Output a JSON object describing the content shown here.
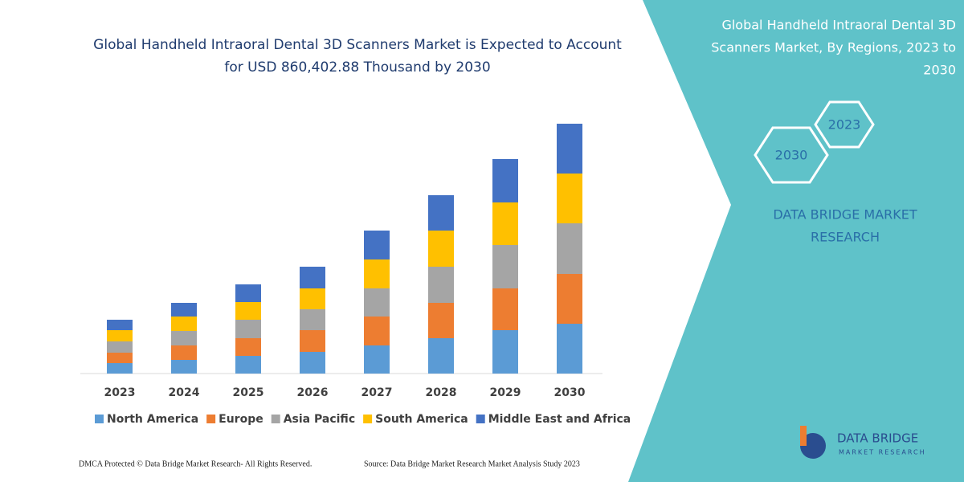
{
  "chart_data": {
    "type": "bar",
    "stacked": true,
    "title": [
      "Global Handheld Intraoral Dental 3D Scanners Market is Expected to Account",
      "for USD 860,402.88 Thousand by 2030"
    ],
    "categories": [
      "2023",
      "2024",
      "2025",
      "2026",
      "2027",
      "2028",
      "2029",
      "2030"
    ],
    "series": [
      {
        "name": "North America",
        "color": "#5b9bd5",
        "values": [
          13,
          17,
          22,
          27,
          35,
          44,
          54,
          62
        ]
      },
      {
        "name": "Europe",
        "color": "#ed7d31",
        "values": [
          13,
          18,
          22,
          27,
          36,
          44,
          52,
          62
        ]
      },
      {
        "name": "Asia Pacific",
        "color": "#a5a5a5",
        "values": [
          14,
          18,
          23,
          26,
          35,
          45,
          54,
          63
        ]
      },
      {
        "name": "South America",
        "color": "#ffc000",
        "values": [
          14,
          18,
          22,
          26,
          36,
          45,
          53,
          62
        ]
      },
      {
        "name": "Middle East and Africa",
        "color": "#4472c4",
        "values": [
          13,
          17,
          22,
          27,
          36,
          44,
          54,
          62
        ]
      }
    ],
    "ylim": [
      0,
      320
    ],
    "legend": "bottom"
  },
  "panel": {
    "title": [
      "Global Handheld Intraoral Dental 3D",
      "Scanners Market, By Regions, 2023 to",
      "2030"
    ],
    "hexagons": [
      "2023",
      "2030"
    ],
    "brand": [
      "DATA BRIDGE MARKET",
      "RESEARCH"
    ]
  },
  "logo": {
    "name": "DATA BRIDGE",
    "tagline": "MARKET RESEARCH"
  },
  "footer": {
    "left": "DMCA Protected © Data Bridge Market Research-  All Rights Reserved.",
    "right": "Source: Data Bridge Market Research  Market Analysis Study 2023"
  }
}
